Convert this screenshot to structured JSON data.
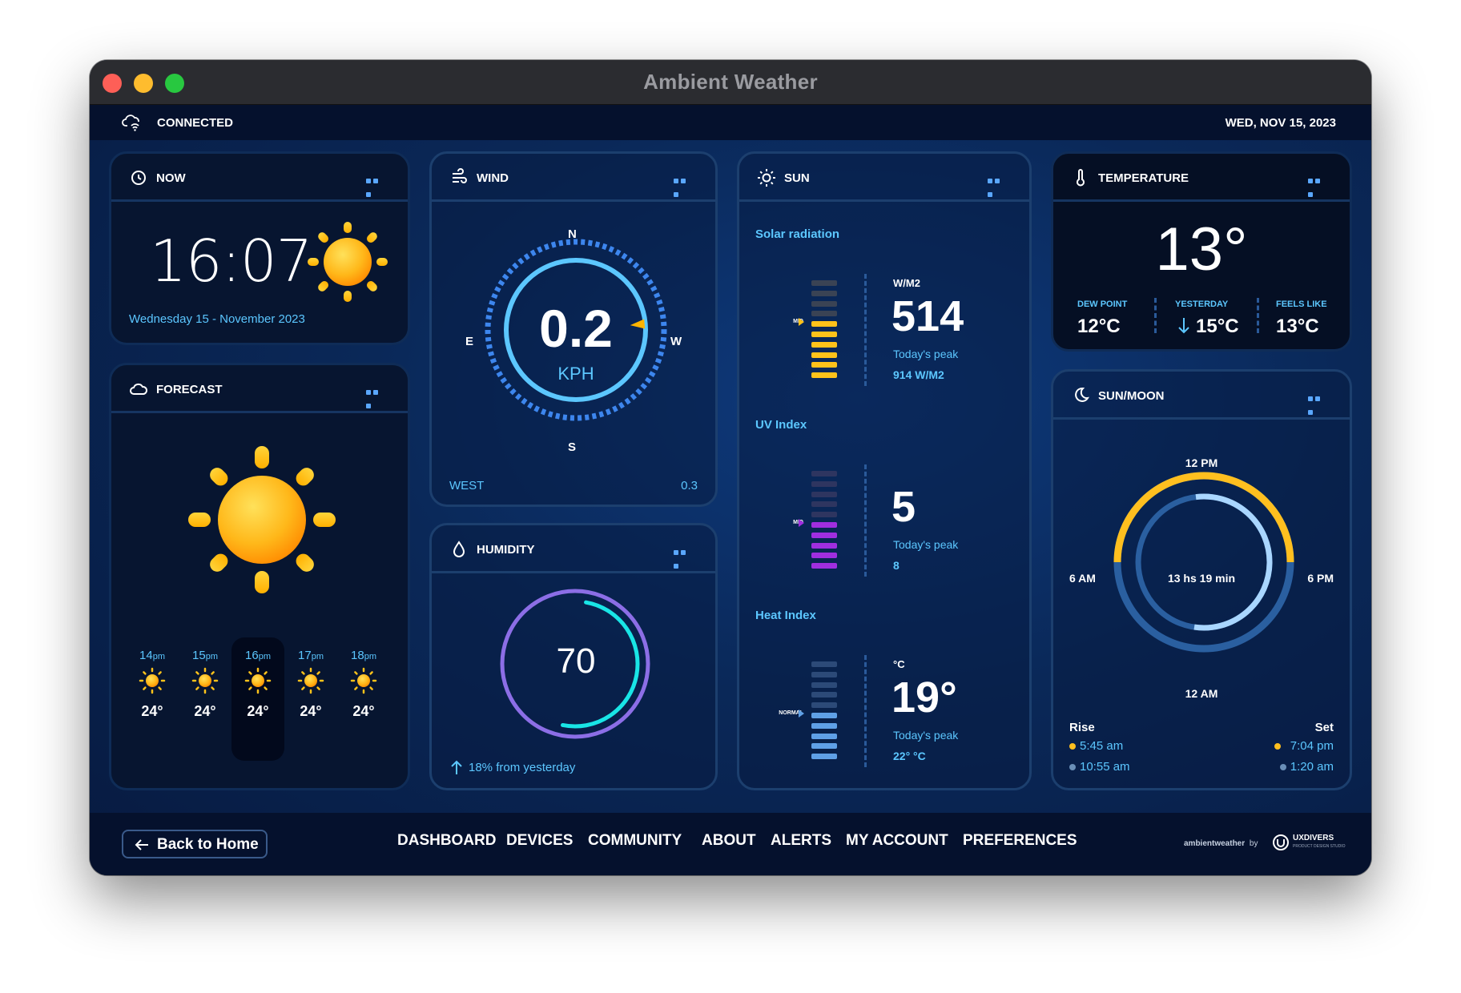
{
  "window": {
    "title": "Ambient Weather"
  },
  "status": {
    "connection": "CONNECTED",
    "date": "WED, NOV 15, 2023"
  },
  "now": {
    "title": "NOW",
    "time": "16:07",
    "date": "Wednesday 15 - November 2023"
  },
  "forecast": {
    "title": "FORECAST",
    "hours": [
      {
        "hour": "14",
        "suffix": "pm",
        "temp": "24°"
      },
      {
        "hour": "15",
        "suffix": "pm",
        "temp": "24°"
      },
      {
        "hour": "16",
        "suffix": "pm",
        "temp": "24°"
      },
      {
        "hour": "17",
        "suffix": "pm",
        "temp": "24°"
      },
      {
        "hour": "18",
        "suffix": "pm",
        "temp": "24°"
      }
    ]
  },
  "wind": {
    "title": "WIND",
    "speed": "0.2",
    "unit": "KPH",
    "n": "N",
    "e": "E",
    "s": "S",
    "w": "W",
    "direction": "WEST",
    "gust": "0.3"
  },
  "humidity": {
    "title": "HUMIDITY",
    "value": "70",
    "percent": 70,
    "change": "18% from yesterday"
  },
  "sun": {
    "title": "SUN",
    "solar": {
      "label": "Solar radiation",
      "unit": "W/M2",
      "value": "514",
      "peak_label": "Today's peak",
      "peak": "914 W/M2",
      "marker": "MID"
    },
    "uv": {
      "label": "UV Index",
      "value": "5",
      "peak_label": "Today's peak",
      "peak": "8",
      "marker": "MID"
    },
    "heat": {
      "label": "Heat Index",
      "unit": "°C",
      "value": "19°",
      "peak_label": "Today's peak",
      "peak": "22° °C",
      "marker": "NORMAL"
    }
  },
  "temperature": {
    "title": "TEMPERATURE",
    "value": "13°",
    "dew_label": "DEW POINT",
    "dew": "12°C",
    "yesterday_label": "YESTERDAY",
    "yesterday": "15°C",
    "feels_label": "FEELS LIKE",
    "feels": "13°C"
  },
  "sunmoon": {
    "title": "SUN/MOON",
    "top": "12 PM",
    "bottom": "12 AM",
    "left": "6 AM",
    "right": "6 PM",
    "daylight": "13 hs 19 min",
    "rise_label": "Rise",
    "set_label": "Set",
    "sunrise": "5:45 am",
    "moonrise": "10:55 am",
    "sunset": "7:04 pm",
    "moonset": "1:20 am"
  },
  "footer": {
    "back": "Back to Home",
    "nav": [
      "DASHBOARD",
      "DEVICES",
      "COMMUNITY",
      "ABOUT",
      "ALERTS",
      "MY ACCOUNT",
      "PREFERENCES"
    ],
    "brand": "ambientweather",
    "by": "by",
    "studio": "UXDIVERS",
    "studio_sub": "PRODUCT DESIGN STUDIO"
  },
  "colors": {
    "accent": "#2a86ff",
    "sun": "#ffc21a",
    "uv": "#a12ee0",
    "heat": "#5fa0e6",
    "humidity_ring": "#8c6ee6",
    "humidity_arc": "#19e5e6",
    "sun_ring": "#ffbf1f",
    "moon_ring": "#a9d6ff"
  }
}
